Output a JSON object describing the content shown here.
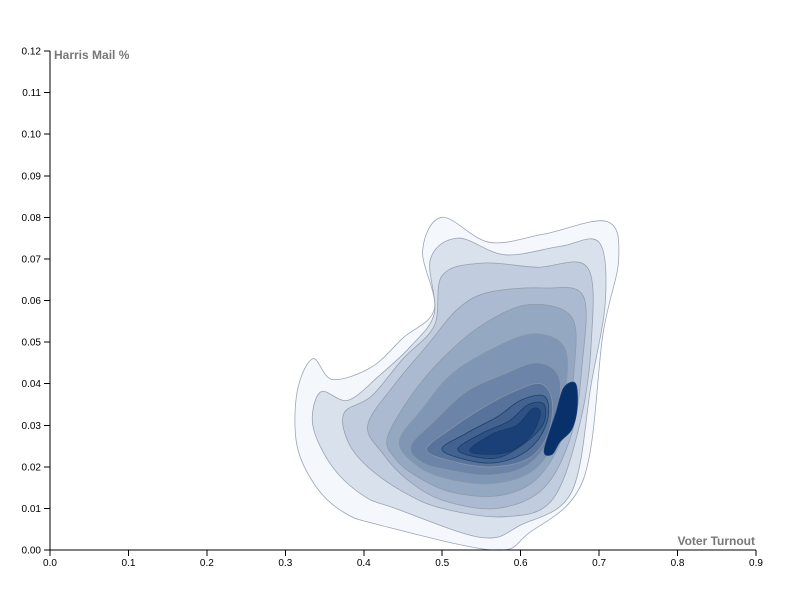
{
  "chart_data": {
    "type": "contour-density",
    "xlabel": "Voter Turnout",
    "ylabel": "Harris Mail %",
    "xlim": [
      0,
      0.9
    ],
    "ylim": [
      0,
      0.12
    ],
    "x_ticks": [
      "0.0",
      "0.1",
      "0.2",
      "0.3",
      "0.4",
      "0.5",
      "0.6",
      "0.7",
      "0.8",
      "0.9"
    ],
    "y_ticks": [
      "0.00",
      "0.01",
      "0.02",
      "0.03",
      "0.04",
      "0.05",
      "0.06",
      "0.07",
      "0.08",
      "0.09",
      "0.10",
      "0.11",
      "0.12"
    ],
    "color_scheme": "blues",
    "colors": {
      "low": "#f4f8fd",
      "high": "#08306b",
      "outline": "#8c96a6"
    },
    "contours": [
      {
        "level": 1,
        "points": [
          [
            0.335,
            0.046
          ],
          [
            0.36,
            0.041
          ],
          [
            0.41,
            0.044
          ],
          [
            0.45,
            0.051
          ],
          [
            0.49,
            0.058
          ],
          [
            0.475,
            0.072
          ],
          [
            0.5,
            0.08
          ],
          [
            0.56,
            0.074
          ],
          [
            0.63,
            0.076
          ],
          [
            0.71,
            0.079
          ],
          [
            0.725,
            0.07
          ],
          [
            0.705,
            0.052
          ],
          [
            0.68,
            0.017
          ],
          [
            0.61,
            0.004
          ],
          [
            0.565,
            0.0
          ],
          [
            0.42,
            0.006
          ],
          [
            0.375,
            0.009
          ],
          [
            0.34,
            0.015
          ],
          [
            0.315,
            0.025
          ],
          [
            0.315,
            0.038
          ]
        ]
      },
      {
        "level": 2,
        "points": [
          [
            0.345,
            0.038
          ],
          [
            0.38,
            0.036
          ],
          [
            0.42,
            0.042
          ],
          [
            0.46,
            0.049
          ],
          [
            0.49,
            0.057
          ],
          [
            0.485,
            0.07
          ],
          [
            0.52,
            0.075
          ],
          [
            0.58,
            0.071
          ],
          [
            0.65,
            0.073
          ],
          [
            0.7,
            0.074
          ],
          [
            0.708,
            0.06
          ],
          [
            0.69,
            0.04
          ],
          [
            0.665,
            0.014
          ],
          [
            0.6,
            0.006
          ],
          [
            0.55,
            0.003
          ],
          [
            0.44,
            0.01
          ],
          [
            0.4,
            0.013
          ],
          [
            0.36,
            0.02
          ],
          [
            0.335,
            0.03
          ]
        ]
      },
      {
        "level": 3,
        "points": [
          [
            0.375,
            0.033
          ],
          [
            0.41,
            0.037
          ],
          [
            0.45,
            0.046
          ],
          [
            0.49,
            0.054
          ],
          [
            0.5,
            0.066
          ],
          [
            0.55,
            0.069
          ],
          [
            0.62,
            0.068
          ],
          [
            0.685,
            0.068
          ],
          [
            0.69,
            0.05
          ],
          [
            0.675,
            0.03
          ],
          [
            0.64,
            0.012
          ],
          [
            0.58,
            0.008
          ],
          [
            0.5,
            0.01
          ],
          [
            0.45,
            0.014
          ],
          [
            0.405,
            0.02
          ],
          [
            0.38,
            0.026
          ]
        ]
      },
      {
        "level": 4,
        "points": [
          [
            0.405,
            0.03
          ],
          [
            0.44,
            0.04
          ],
          [
            0.48,
            0.049
          ],
          [
            0.52,
            0.058
          ],
          [
            0.56,
            0.062
          ],
          [
            0.63,
            0.063
          ],
          [
            0.68,
            0.061
          ],
          [
            0.678,
            0.044
          ],
          [
            0.665,
            0.028
          ],
          [
            0.63,
            0.015
          ],
          [
            0.57,
            0.01
          ],
          [
            0.5,
            0.012
          ],
          [
            0.455,
            0.017
          ],
          [
            0.425,
            0.023
          ]
        ]
      },
      {
        "level": 5,
        "points": [
          [
            0.43,
            0.027
          ],
          [
            0.46,
            0.037
          ],
          [
            0.5,
            0.046
          ],
          [
            0.55,
            0.054
          ],
          [
            0.61,
            0.059
          ],
          [
            0.665,
            0.056
          ],
          [
            0.668,
            0.043
          ],
          [
            0.655,
            0.028
          ],
          [
            0.62,
            0.017
          ],
          [
            0.57,
            0.013
          ],
          [
            0.51,
            0.014
          ],
          [
            0.465,
            0.018
          ],
          [
            0.44,
            0.022
          ]
        ]
      },
      {
        "level": 6,
        "points": [
          [
            0.445,
            0.026
          ],
          [
            0.475,
            0.034
          ],
          [
            0.51,
            0.042
          ],
          [
            0.56,
            0.048
          ],
          [
            0.615,
            0.052
          ],
          [
            0.655,
            0.049
          ],
          [
            0.658,
            0.039
          ],
          [
            0.645,
            0.027
          ],
          [
            0.615,
            0.019
          ],
          [
            0.565,
            0.016
          ],
          [
            0.51,
            0.017
          ],
          [
            0.47,
            0.02
          ]
        ]
      },
      {
        "level": 7,
        "points": [
          [
            0.46,
            0.025
          ],
          [
            0.49,
            0.031
          ],
          [
            0.53,
            0.038
          ],
          [
            0.575,
            0.042
          ],
          [
            0.62,
            0.045
          ],
          [
            0.648,
            0.042
          ],
          [
            0.648,
            0.034
          ],
          [
            0.635,
            0.026
          ],
          [
            0.605,
            0.02
          ],
          [
            0.56,
            0.018
          ],
          [
            0.515,
            0.019
          ],
          [
            0.475,
            0.021
          ]
        ]
      },
      {
        "level": 8,
        "points": [
          [
            0.48,
            0.024
          ],
          [
            0.51,
            0.029
          ],
          [
            0.55,
            0.034
          ],
          [
            0.59,
            0.038
          ],
          [
            0.625,
            0.04
          ],
          [
            0.64,
            0.036
          ],
          [
            0.635,
            0.028
          ],
          [
            0.61,
            0.022
          ],
          [
            0.565,
            0.02
          ],
          [
            0.52,
            0.021
          ]
        ]
      },
      {
        "level": 9,
        "points": [
          [
            0.5,
            0.024
          ],
          [
            0.53,
            0.028
          ],
          [
            0.57,
            0.032
          ],
          [
            0.6,
            0.036
          ],
          [
            0.63,
            0.037
          ],
          [
            0.635,
            0.032
          ],
          [
            0.62,
            0.026
          ],
          [
            0.59,
            0.022
          ],
          [
            0.55,
            0.021
          ]
        ]
      },
      {
        "level": 10,
        "points": [
          [
            0.52,
            0.024
          ],
          [
            0.55,
            0.028
          ],
          [
            0.585,
            0.031
          ],
          [
            0.61,
            0.035
          ],
          [
            0.63,
            0.035
          ],
          [
            0.628,
            0.03
          ],
          [
            0.6,
            0.025
          ],
          [
            0.565,
            0.022
          ]
        ]
      },
      {
        "level": 11,
        "points": [
          [
            0.535,
            0.024
          ],
          [
            0.565,
            0.028
          ],
          [
            0.595,
            0.03
          ],
          [
            0.615,
            0.034
          ],
          [
            0.625,
            0.033
          ],
          [
            0.615,
            0.028
          ],
          [
            0.59,
            0.024
          ],
          [
            0.56,
            0.023
          ]
        ]
      },
      {
        "level": 12,
        "points": [
          [
            0.63,
            0.024
          ],
          [
            0.645,
            0.033
          ],
          [
            0.655,
            0.039
          ],
          [
            0.67,
            0.04
          ],
          [
            0.672,
            0.034
          ],
          [
            0.665,
            0.029
          ],
          [
            0.65,
            0.026
          ],
          [
            0.64,
            0.023
          ]
        ]
      }
    ]
  }
}
